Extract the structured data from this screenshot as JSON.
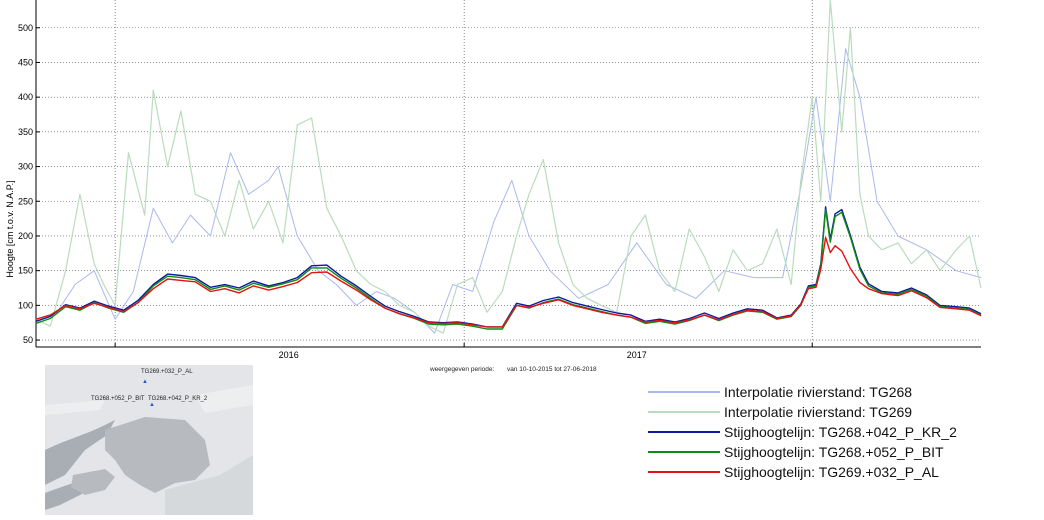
{
  "chart_data": {
    "type": "line",
    "ylabel": "Hoogte [cm t.o.v. N.A.P.]",
    "xlabel": "",
    "x_start": "2015-10-10",
    "x_end": "2018-06-27",
    "ylim": [
      40,
      540
    ],
    "yticks": [
      50,
      100,
      150,
      200,
      250,
      300,
      350,
      400,
      450,
      500
    ],
    "x_tick_labels": [
      {
        "label": "2016",
        "date": "2016-07-01"
      },
      {
        "label": "2017",
        "date": "2017-07-01"
      }
    ],
    "year_lines": [
      "2016-01-01",
      "2017-01-01",
      "2018-01-01"
    ],
    "grid": true,
    "legend_position": "below-right",
    "series": [
      {
        "name": "Interpolatie rivierstand: TG268",
        "color": "#aab8ee",
        "x": [
          "2015-10-10",
          "2015-11-01",
          "2015-11-20",
          "2015-12-10",
          "2016-01-01",
          "2016-01-20",
          "2016-02-10",
          "2016-03-01",
          "2016-03-20",
          "2016-04-10",
          "2016-05-01",
          "2016-05-20",
          "2016-06-10",
          "2016-06-20",
          "2016-07-10",
          "2016-08-01",
          "2016-08-20",
          "2016-09-10",
          "2016-10-01",
          "2016-10-20",
          "2016-11-10",
          "2016-12-01",
          "2016-12-20",
          "2017-01-10",
          "2017-02-01",
          "2017-02-20",
          "2017-03-10",
          "2017-04-01",
          "2017-05-01",
          "2017-06-01",
          "2017-07-01",
          "2017-08-01",
          "2017-09-01",
          "2017-10-01",
          "2017-11-01",
          "2017-12-01",
          "2017-12-20",
          "2018-01-05",
          "2018-01-20",
          "2018-02-05",
          "2018-02-20",
          "2018-03-10",
          "2018-04-01",
          "2018-05-01",
          "2018-06-01",
          "2018-06-27"
        ],
        "y": [
          80,
          90,
          130,
          150,
          80,
          120,
          240,
          190,
          230,
          200,
          320,
          260,
          280,
          300,
          200,
          150,
          130,
          100,
          120,
          110,
          90,
          60,
          130,
          120,
          220,
          280,
          200,
          150,
          110,
          130,
          190,
          130,
          110,
          150,
          140,
          140,
          270,
          400,
          250,
          470,
          400,
          250,
          200,
          180,
          150,
          140
        ]
      },
      {
        "name": "Interpolatie rivierstand: TG269",
        "color": "#b9dcbc",
        "x": [
          "2015-10-10",
          "2015-10-25",
          "2015-11-10",
          "2015-11-25",
          "2015-12-10",
          "2015-12-20",
          "2016-01-01",
          "2016-01-15",
          "2016-02-01",
          "2016-02-10",
          "2016-02-25",
          "2016-03-10",
          "2016-03-25",
          "2016-04-10",
          "2016-04-25",
          "2016-05-10",
          "2016-05-25",
          "2016-06-10",
          "2016-06-25",
          "2016-07-10",
          "2016-07-25",
          "2016-08-10",
          "2016-08-25",
          "2016-09-10",
          "2016-09-25",
          "2016-10-10",
          "2016-10-25",
          "2016-11-10",
          "2016-11-25",
          "2016-12-10",
          "2016-12-25",
          "2017-01-10",
          "2017-01-25",
          "2017-02-10",
          "2017-02-25",
          "2017-03-10",
          "2017-03-25",
          "2017-04-10",
          "2017-04-25",
          "2017-05-10",
          "2017-05-25",
          "2017-06-10",
          "2017-06-25",
          "2017-07-10",
          "2017-07-25",
          "2017-08-10",
          "2017-08-25",
          "2017-09-10",
          "2017-09-25",
          "2017-10-10",
          "2017-10-25",
          "2017-11-10",
          "2017-11-25",
          "2017-12-10",
          "2017-12-20",
          "2018-01-01",
          "2018-01-10",
          "2018-01-20",
          "2018-02-01",
          "2018-02-10",
          "2018-02-20",
          "2018-03-01",
          "2018-03-15",
          "2018-04-01",
          "2018-04-15",
          "2018-05-01",
          "2018-05-15",
          "2018-06-01",
          "2018-06-15",
          "2018-06-27"
        ],
        "y": [
          80,
          70,
          150,
          260,
          160,
          130,
          100,
          320,
          230,
          410,
          300,
          380,
          260,
          250,
          200,
          280,
          210,
          250,
          190,
          360,
          370,
          240,
          200,
          150,
          130,
          120,
          100,
          90,
          70,
          60,
          130,
          140,
          90,
          120,
          200,
          260,
          310,
          190,
          130,
          110,
          100,
          90,
          200,
          230,
          150,
          120,
          210,
          170,
          120,
          180,
          150,
          160,
          210,
          130,
          280,
          400,
          250,
          540,
          350,
          500,
          260,
          200,
          180,
          190,
          160,
          180,
          150,
          180,
          200,
          125
        ]
      },
      {
        "name": "Stijghoogtelijn: TG268.+042_P_KR_2",
        "color": "#0b1a9e",
        "x": [
          "2015-10-10",
          "2015-10-25",
          "2015-11-10",
          "2015-11-25",
          "2015-12-10",
          "2015-12-25",
          "2016-01-10",
          "2016-01-25",
          "2016-02-10",
          "2016-02-25",
          "2016-03-10",
          "2016-03-25",
          "2016-04-10",
          "2016-04-25",
          "2016-05-10",
          "2016-05-25",
          "2016-06-10",
          "2016-06-25",
          "2016-07-10",
          "2016-07-25",
          "2016-08-10",
          "2016-08-25",
          "2016-09-10",
          "2016-09-25",
          "2016-10-10",
          "2016-10-25",
          "2016-11-10",
          "2016-11-25",
          "2016-12-10",
          "2016-12-25",
          "2017-01-10",
          "2017-01-25",
          "2017-02-10",
          "2017-02-25",
          "2017-03-10",
          "2017-03-25",
          "2017-04-10",
          "2017-04-25",
          "2017-05-10",
          "2017-05-25",
          "2017-06-10",
          "2017-06-25",
          "2017-07-10",
          "2017-07-25",
          "2017-08-10",
          "2017-08-25",
          "2017-09-10",
          "2017-09-25",
          "2017-10-10",
          "2017-10-25",
          "2017-11-10",
          "2017-11-25",
          "2017-12-10",
          "2017-12-20",
          "2017-12-28",
          "2018-01-05",
          "2018-01-10",
          "2018-01-15",
          "2018-01-20",
          "2018-01-25",
          "2018-02-01",
          "2018-02-10",
          "2018-02-20",
          "2018-03-01",
          "2018-03-15",
          "2018-04-01",
          "2018-04-15",
          "2018-05-01",
          "2018-05-15",
          "2018-06-01",
          "2018-06-15",
          "2018-06-27"
        ],
        "y": [
          77,
          84,
          101,
          96,
          106,
          99,
          93,
          107,
          130,
          145,
          143,
          140,
          126,
          130,
          125,
          135,
          128,
          133,
          140,
          157,
          158,
          142,
          128,
          113,
          99,
          91,
          84,
          76,
          75,
          76,
          73,
          69,
          69,
          103,
          99,
          107,
          112,
          104,
          99,
          94,
          89,
          86,
          77,
          80,
          76,
          81,
          89,
          81,
          89,
          95,
          93,
          82,
          86,
          102,
          128,
          130,
          160,
          242,
          195,
          232,
          238,
          201,
          155,
          131,
          120,
          118,
          125,
          115,
          100,
          98,
          96,
          88
        ]
      },
      {
        "name": "Stijghoogtelijn: TG268.+052_P_BIT",
        "color": "#0f8a12",
        "x": [
          "2015-10-10",
          "2015-10-25",
          "2015-11-10",
          "2015-11-25",
          "2015-12-10",
          "2015-12-25",
          "2016-01-10",
          "2016-01-25",
          "2016-02-10",
          "2016-02-25",
          "2016-03-10",
          "2016-03-25",
          "2016-04-10",
          "2016-04-25",
          "2016-05-10",
          "2016-05-25",
          "2016-06-10",
          "2016-06-25",
          "2016-07-10",
          "2016-07-25",
          "2016-08-10",
          "2016-08-25",
          "2016-09-10",
          "2016-09-25",
          "2016-10-10",
          "2016-10-25",
          "2016-11-10",
          "2016-11-25",
          "2016-12-10",
          "2016-12-25",
          "2017-01-10",
          "2017-01-25",
          "2017-02-10",
          "2017-02-25",
          "2017-03-10",
          "2017-03-25",
          "2017-04-10",
          "2017-04-25",
          "2017-05-10",
          "2017-05-25",
          "2017-06-10",
          "2017-06-25",
          "2017-07-10",
          "2017-07-25",
          "2017-08-10",
          "2017-08-25",
          "2017-09-10",
          "2017-09-25",
          "2017-10-10",
          "2017-10-25",
          "2017-11-10",
          "2017-11-25",
          "2017-12-10",
          "2017-12-20",
          "2017-12-28",
          "2018-01-05",
          "2018-01-10",
          "2018-01-15",
          "2018-01-20",
          "2018-01-25",
          "2018-02-01",
          "2018-02-10",
          "2018-02-20",
          "2018-03-01",
          "2018-03-15",
          "2018-04-01",
          "2018-04-15",
          "2018-05-01",
          "2018-05-15",
          "2018-06-01",
          "2018-06-15",
          "2018-06-27"
        ],
        "y": [
          74,
          81,
          98,
          93,
          104,
          96,
          90,
          104,
          128,
          142,
          140,
          137,
          123,
          128,
          122,
          132,
          126,
          131,
          137,
          154,
          154,
          139,
          125,
          110,
          96,
          88,
          81,
          73,
          72,
          73,
          70,
          66,
          66,
          100,
          96,
          104,
          109,
          101,
          96,
          91,
          86,
          83,
          74,
          77,
          73,
          78,
          86,
          78,
          86,
          92,
          90,
          80,
          84,
          100,
          126,
          128,
          157,
          238,
          191,
          228,
          234,
          198,
          152,
          128,
          118,
          116,
          123,
          113,
          98,
          96,
          94,
          86
        ]
      },
      {
        "name": "Stijghoogtelijn: TG269.+032_P_AL",
        "color": "#e01414",
        "x": [
          "2015-10-10",
          "2015-10-25",
          "2015-11-10",
          "2015-11-25",
          "2015-12-10",
          "2015-12-25",
          "2016-01-10",
          "2016-01-25",
          "2016-02-10",
          "2016-02-25",
          "2016-03-10",
          "2016-03-25",
          "2016-04-10",
          "2016-04-25",
          "2016-05-10",
          "2016-05-25",
          "2016-06-10",
          "2016-06-25",
          "2016-07-10",
          "2016-07-25",
          "2016-08-10",
          "2016-08-25",
          "2016-09-10",
          "2016-09-25",
          "2016-10-10",
          "2016-10-25",
          "2016-11-10",
          "2016-11-25",
          "2016-12-10",
          "2016-12-25",
          "2017-01-10",
          "2017-01-25",
          "2017-02-10",
          "2017-02-25",
          "2017-03-10",
          "2017-03-25",
          "2017-04-10",
          "2017-04-25",
          "2017-05-10",
          "2017-05-25",
          "2017-06-10",
          "2017-06-25",
          "2017-07-10",
          "2017-07-25",
          "2017-08-10",
          "2017-08-25",
          "2017-09-10",
          "2017-09-25",
          "2017-10-10",
          "2017-10-25",
          "2017-11-10",
          "2017-11-25",
          "2017-12-10",
          "2017-12-20",
          "2017-12-28",
          "2018-01-05",
          "2018-01-10",
          "2018-01-15",
          "2018-01-20",
          "2018-01-25",
          "2018-02-01",
          "2018-02-10",
          "2018-02-20",
          "2018-03-01",
          "2018-03-15",
          "2018-04-01",
          "2018-04-15",
          "2018-05-01",
          "2018-05-15",
          "2018-06-01",
          "2018-06-15",
          "2018-06-27"
        ],
        "y": [
          80,
          86,
          100,
          95,
          103,
          97,
          91,
          104,
          124,
          138,
          136,
          134,
          120,
          124,
          118,
          128,
          122,
          127,
          133,
          147,
          148,
          135,
          122,
          108,
          96,
          88,
          82,
          75,
          74,
          75,
          72,
          69,
          69,
          100,
          97,
          103,
          108,
          100,
          95,
          90,
          86,
          83,
          76,
          78,
          75,
          79,
          86,
          79,
          87,
          93,
          91,
          81,
          85,
          101,
          124,
          126,
          152,
          198,
          176,
          186,
          178,
          153,
          133,
          124,
          117,
          114,
          121,
          111,
          97,
          95,
          93,
          85
        ]
      }
    ]
  },
  "period": {
    "label": "weergegeven periode:",
    "range": "van 10-10-2015 tot 27-06-2018"
  },
  "map": {
    "labels": [
      "TG269.+032_P_AL",
      "TG268.+052_P_BIT",
      "TG268.+042_P_KR_2"
    ]
  }
}
